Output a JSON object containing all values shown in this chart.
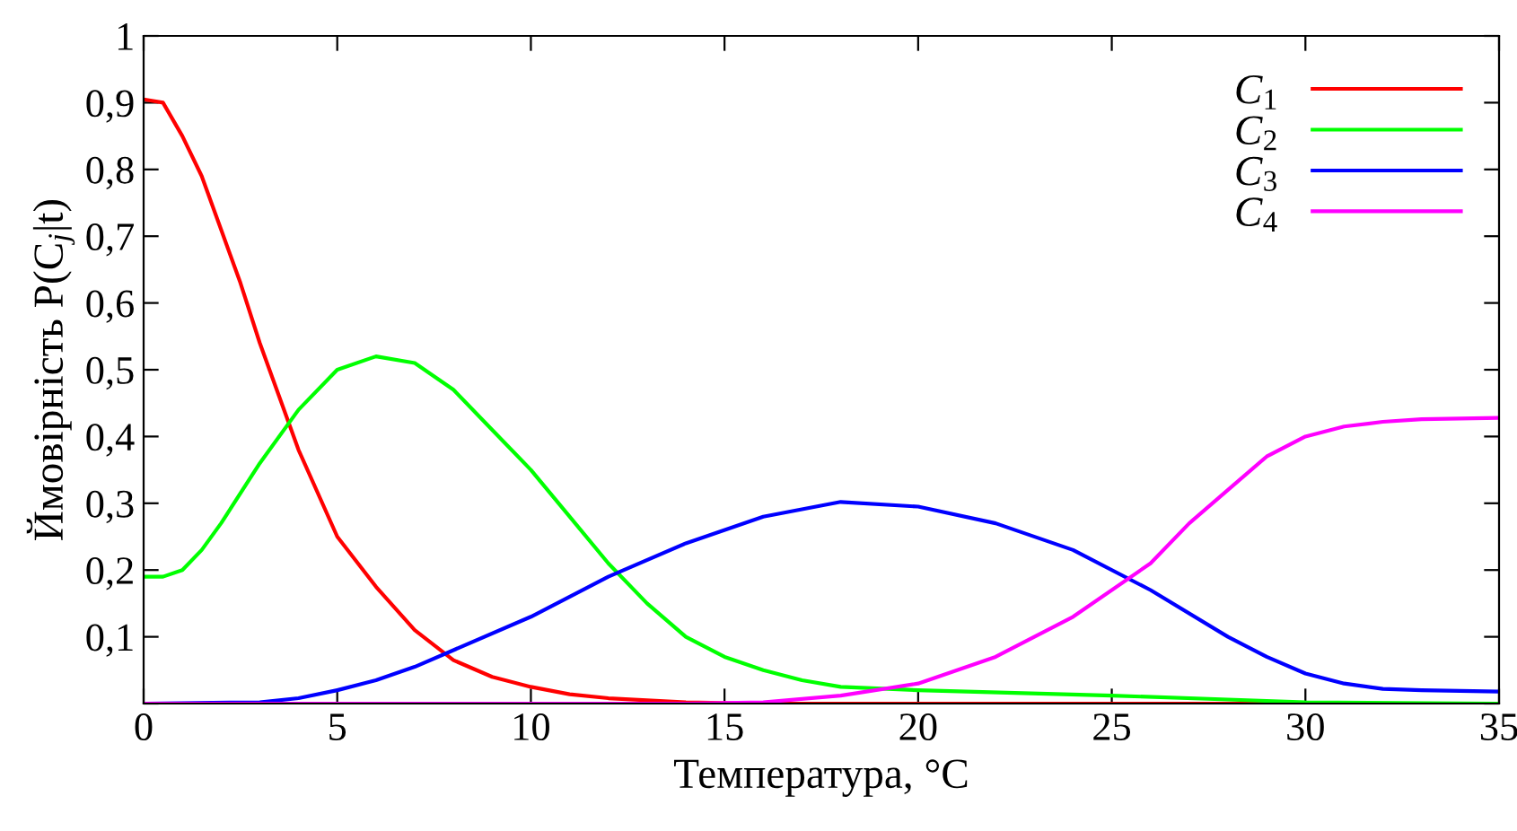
{
  "chart_data": {
    "type": "line",
    "xlabel": "Температура, °C",
    "ylabel": "Ймовірність P(C$_{j}$|t)",
    "xlim": [
      0,
      35
    ],
    "xticks": [
      0,
      5,
      10,
      15,
      20,
      25,
      30,
      35
    ],
    "ylim": [
      0,
      1
    ],
    "yticks": [
      {
        "value": 0,
        "label": null
      },
      {
        "value": 0.1,
        "label": "0,1"
      },
      {
        "value": 0.2,
        "label": "0,2"
      },
      {
        "value": 0.3,
        "label": "0,3"
      },
      {
        "value": 0.4,
        "label": "0,4"
      },
      {
        "value": 0.5,
        "label": "0,5"
      },
      {
        "value": 0.6,
        "label": "0,6"
      },
      {
        "value": 0.7,
        "label": "0,7"
      },
      {
        "value": 0.8,
        "label": "0,8"
      },
      {
        "value": 0.9,
        "label": "0,9"
      },
      1
    ],
    "grid": false,
    "legend": "top right",
    "line_style": "solid",
    "marker": "none",
    "series": [
      {
        "name": "C$_{1}$",
        "color": "#ff0000",
        "x": [
          0,
          0.5,
          1,
          1.5,
          2,
          2.5,
          3,
          3.5,
          4,
          5,
          6,
          7,
          8,
          9,
          10,
          11,
          12,
          14,
          16,
          35
        ],
        "values": [
          0.905,
          0.9,
          0.85,
          0.79,
          0.71,
          0.63,
          0.54,
          0.46,
          0.38,
          0.25,
          0.175,
          0.11,
          0.065,
          0.04,
          0.025,
          0.014,
          0.008,
          0.002,
          0,
          0
        ]
      },
      {
        "name": "C$_{2}$",
        "color": "#00ff00",
        "x": [
          0,
          0.5,
          1,
          1.5,
          2,
          3,
          4,
          5,
          6,
          7,
          8,
          9,
          10,
          11,
          12,
          13,
          14,
          15,
          16,
          17,
          18,
          20,
          25,
          28,
          30,
          35
        ],
        "values": [
          0.19,
          0.19,
          0.2,
          0.23,
          0.27,
          0.36,
          0.44,
          0.5,
          0.52,
          0.51,
          0.47,
          0.41,
          0.35,
          0.28,
          0.21,
          0.15,
          0.1,
          0.07,
          0.05,
          0.035,
          0.025,
          0.02,
          0.012,
          0.006,
          0.002,
          0
        ]
      },
      {
        "name": "C$_{3}$",
        "color": "#0000ff",
        "x": [
          0,
          3,
          4,
          5,
          6,
          7,
          8,
          10,
          12,
          14,
          16,
          18,
          20,
          22,
          24,
          26,
          28,
          29,
          30,
          31,
          32,
          33,
          35
        ],
        "values": [
          0,
          0.002,
          0.008,
          0.02,
          0.035,
          0.055,
          0.08,
          0.13,
          0.19,
          0.24,
          0.28,
          0.302,
          0.295,
          0.27,
          0.23,
          0.17,
          0.1,
          0.07,
          0.045,
          0.03,
          0.022,
          0.02,
          0.018
        ]
      },
      {
        "name": "C$_{4}$",
        "color": "#ff00ff",
        "x": [
          0,
          14,
          16,
          18,
          20,
          22,
          24,
          26,
          27,
          28,
          29,
          30,
          31,
          32,
          33,
          35
        ],
        "values": [
          0,
          0,
          0.002,
          0.012,
          0.03,
          0.07,
          0.13,
          0.21,
          0.27,
          0.32,
          0.37,
          0.4,
          0.415,
          0.422,
          0.426,
          0.428
        ]
      }
    ]
  }
}
